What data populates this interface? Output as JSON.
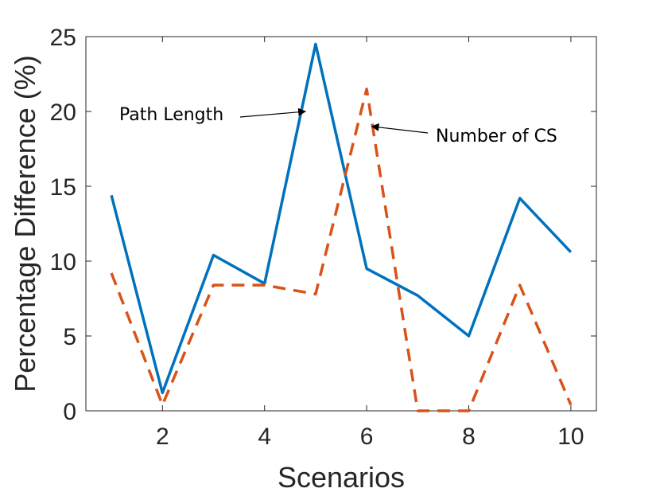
{
  "chart_data": {
    "type": "line",
    "title": "",
    "xlabel": "Scenarios",
    "ylabel": "Percentage Difference (%)",
    "xlim": [
      0.5,
      10.5
    ],
    "ylim": [
      0,
      25
    ],
    "xticks": [
      2,
      4,
      6,
      8,
      10
    ],
    "yticks": [
      0,
      5,
      10,
      15,
      20,
      25
    ],
    "grid": false,
    "legend": "none",
    "x": [
      1,
      2,
      3,
      4,
      5,
      6,
      7,
      8,
      9,
      10
    ],
    "series": [
      {
        "values": [
          14.4,
          1.2,
          10.4,
          8.5,
          24.5,
          9.5,
          7.7,
          5.0,
          14.2,
          10.6
        ],
        "color": "#0072BD",
        "style": "solid"
      },
      {
        "values": [
          9.2,
          0.4,
          8.4,
          8.4,
          7.8,
          21.5,
          0.0,
          0.0,
          8.4,
          0.4
        ],
        "color": "#D95319",
        "style": "dashed"
      }
    ],
    "annotations": [
      {
        "text": "Path Length",
        "arrow_to": [
          4.8,
          20.0
        ]
      },
      {
        "text": "Number of CS",
        "arrow_to": [
          6.1,
          19.0
        ]
      }
    ]
  }
}
